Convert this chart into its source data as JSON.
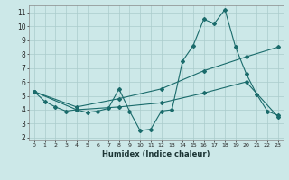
{
  "xlabel": "Humidex (Indice chaleur)",
  "bg_color": "#cce8e8",
  "grid_color": "#aacccc",
  "line_color": "#1a6b6b",
  "xlim": [
    -0.5,
    23.5
  ],
  "ylim": [
    1.8,
    11.5
  ],
  "xticks": [
    0,
    1,
    2,
    3,
    4,
    5,
    6,
    7,
    8,
    9,
    10,
    11,
    12,
    13,
    14,
    15,
    16,
    17,
    18,
    19,
    20,
    21,
    22,
    23
  ],
  "yticks": [
    2,
    3,
    4,
    5,
    6,
    7,
    8,
    9,
    10,
    11
  ],
  "series1_x": [
    0,
    1,
    2,
    3,
    4,
    5,
    6,
    7,
    8,
    9,
    10,
    11,
    12,
    13,
    14,
    15,
    16,
    17,
    18,
    19,
    20,
    21,
    22,
    23
  ],
  "series1_y": [
    5.3,
    4.6,
    4.2,
    3.9,
    4.0,
    3.8,
    3.9,
    4.1,
    5.5,
    3.9,
    2.5,
    2.6,
    3.9,
    4.0,
    7.5,
    8.6,
    10.5,
    10.2,
    11.2,
    8.5,
    6.6,
    5.1,
    3.9,
    3.6
  ],
  "series2_x": [
    0,
    4,
    8,
    12,
    16,
    20,
    23
  ],
  "series2_y": [
    5.3,
    4.2,
    4.8,
    5.5,
    6.8,
    7.8,
    8.5
  ],
  "series3_x": [
    0,
    4,
    8,
    12,
    16,
    20,
    23
  ],
  "series3_y": [
    5.3,
    4.0,
    4.2,
    4.5,
    5.2,
    6.0,
    3.5
  ]
}
